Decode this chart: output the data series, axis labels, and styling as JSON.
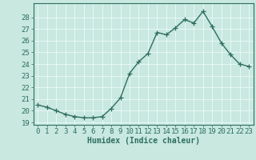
{
  "x": [
    0,
    1,
    2,
    3,
    4,
    5,
    6,
    7,
    8,
    9,
    10,
    11,
    12,
    13,
    14,
    15,
    16,
    17,
    18,
    19,
    20,
    21,
    22,
    23
  ],
  "y": [
    20.5,
    20.3,
    20.0,
    19.7,
    19.5,
    19.4,
    19.4,
    19.5,
    20.2,
    21.1,
    23.2,
    24.2,
    24.9,
    26.7,
    26.5,
    27.1,
    27.8,
    27.5,
    28.5,
    27.2,
    25.8,
    24.8,
    24.0,
    23.8
  ],
  "line_color": "#2e6e60",
  "marker": "+",
  "marker_size": 4,
  "bg_color": "#c8e8e0",
  "grid_color": "#e8f8f4",
  "xlabel": "Humidex (Indice chaleur)",
  "xlim": [
    -0.5,
    23.5
  ],
  "ylim": [
    18.8,
    29.2
  ],
  "yticks": [
    19,
    20,
    21,
    22,
    23,
    24,
    25,
    26,
    27,
    28
  ],
  "xticks": [
    0,
    1,
    2,
    3,
    4,
    5,
    6,
    7,
    8,
    9,
    10,
    11,
    12,
    13,
    14,
    15,
    16,
    17,
    18,
    19,
    20,
    21,
    22,
    23
  ],
  "tick_color": "#2e6e60",
  "label_fontsize": 6.5,
  "xlabel_fontsize": 7,
  "xlabel_fontweight": "bold",
  "linewidth": 1.0,
  "markeredgewidth": 0.9
}
